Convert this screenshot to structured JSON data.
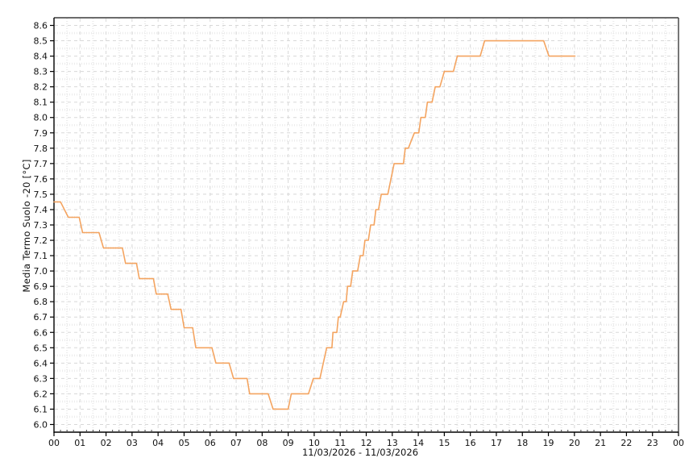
{
  "chart_data": {
    "type": "line",
    "title": "",
    "ylabel": "Media Termo Suolo -20 [°C]",
    "xlabel": "",
    "date_label": "11/03/2026 - 11/03/2026",
    "xlim": [
      0,
      24
    ],
    "ylim": [
      5.95,
      8.65
    ],
    "grid": "major dashed + minor dotted, on",
    "legend_position": "none",
    "y_ticks": [
      "8.6",
      "8.5",
      "8.4",
      "8.3",
      "8.2",
      "8.1",
      "8.0",
      "7.9",
      "7.8",
      "7.7",
      "7.6",
      "7.5",
      "7.4",
      "7.3",
      "7.2",
      "7.1",
      "7.0",
      "6.9",
      "6.8",
      "6.7",
      "6.6",
      "6.5",
      "6.4",
      "6.3",
      "6.2",
      "6.1",
      "6.0"
    ],
    "x_ticks": [
      "00",
      "01",
      "02",
      "03",
      "04",
      "05",
      "06",
      "07",
      "08",
      "09",
      "10",
      "11",
      "12",
      "13",
      "14",
      "15",
      "16",
      "17",
      "18",
      "19",
      "20",
      "21",
      "22",
      "23",
      "00"
    ],
    "series": [
      {
        "name": "Media Termo Suolo -20",
        "color": "#F4A460",
        "points": [
          [
            0.0,
            7.45
          ],
          [
            0.25,
            7.45
          ],
          [
            0.55,
            7.35
          ],
          [
            0.97,
            7.35
          ],
          [
            1.1,
            7.25
          ],
          [
            1.73,
            7.25
          ],
          [
            1.9,
            7.15
          ],
          [
            2.63,
            7.15
          ],
          [
            2.75,
            7.05
          ],
          [
            3.17,
            7.05
          ],
          [
            3.28,
            6.95
          ],
          [
            3.82,
            6.95
          ],
          [
            3.93,
            6.85
          ],
          [
            4.37,
            6.85
          ],
          [
            4.5,
            6.75
          ],
          [
            4.88,
            6.75
          ],
          [
            5.0,
            6.63
          ],
          [
            5.33,
            6.63
          ],
          [
            5.45,
            6.5
          ],
          [
            6.07,
            6.5
          ],
          [
            6.22,
            6.4
          ],
          [
            6.73,
            6.4
          ],
          [
            6.9,
            6.3
          ],
          [
            7.42,
            6.3
          ],
          [
            7.52,
            6.2
          ],
          [
            8.23,
            6.2
          ],
          [
            8.42,
            6.1
          ],
          [
            9.0,
            6.1
          ],
          [
            9.12,
            6.2
          ],
          [
            9.78,
            6.2
          ],
          [
            9.97,
            6.3
          ],
          [
            10.22,
            6.3
          ],
          [
            10.48,
            6.5
          ],
          [
            10.68,
            6.5
          ],
          [
            10.72,
            6.6
          ],
          [
            10.87,
            6.6
          ],
          [
            10.93,
            6.7
          ],
          [
            11.0,
            6.7
          ],
          [
            11.13,
            6.8
          ],
          [
            11.23,
            6.8
          ],
          [
            11.28,
            6.9
          ],
          [
            11.4,
            6.9
          ],
          [
            11.48,
            7.0
          ],
          [
            11.67,
            7.0
          ],
          [
            11.77,
            7.1
          ],
          [
            11.88,
            7.1
          ],
          [
            11.95,
            7.2
          ],
          [
            12.08,
            7.2
          ],
          [
            12.17,
            7.3
          ],
          [
            12.3,
            7.3
          ],
          [
            12.37,
            7.4
          ],
          [
            12.47,
            7.4
          ],
          [
            12.58,
            7.5
          ],
          [
            12.83,
            7.5
          ],
          [
            13.07,
            7.7
          ],
          [
            13.43,
            7.7
          ],
          [
            13.5,
            7.8
          ],
          [
            13.62,
            7.8
          ],
          [
            13.85,
            7.9
          ],
          [
            14.02,
            7.9
          ],
          [
            14.1,
            8.0
          ],
          [
            14.27,
            8.0
          ],
          [
            14.35,
            8.1
          ],
          [
            14.53,
            8.1
          ],
          [
            14.65,
            8.2
          ],
          [
            14.83,
            8.2
          ],
          [
            15.0,
            8.3
          ],
          [
            15.35,
            8.3
          ],
          [
            15.5,
            8.4
          ],
          [
            16.38,
            8.4
          ],
          [
            16.55,
            8.5
          ],
          [
            18.82,
            8.5
          ],
          [
            19.02,
            8.4
          ],
          [
            20.02,
            8.4
          ]
        ]
      }
    ],
    "colors": {
      "line": "#F4A460",
      "grid_major": "#d8d8d8",
      "grid_minor": "#ececec",
      "axis": "#000000",
      "border": "#3c3c3c",
      "text": "#111111",
      "background": "#ffffff"
    }
  }
}
